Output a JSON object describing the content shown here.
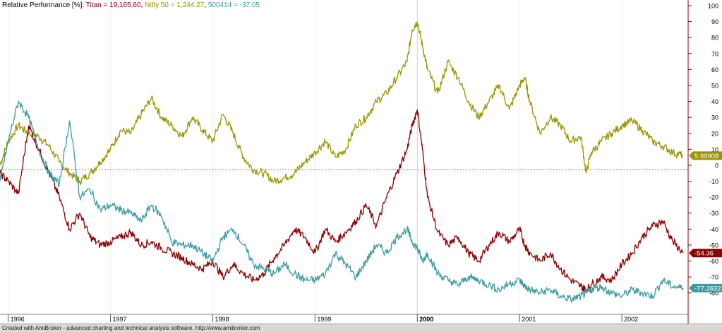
{
  "legend": {
    "prefix": "Relative Performance [%]:",
    "items": [
      {
        "text": "Titan = 19,165.60",
        "color": "#8b0000"
      },
      {
        "text": "Nifty 50 = 1,244.27",
        "color": "#9a9400"
      },
      {
        "text": "500414 = -37.05",
        "color": "#3c9aa0"
      }
    ],
    "separator": ", "
  },
  "footer_text": "Created with AmiBroker - advanced charting and technical analysis software. http://www.amibroker.com",
  "chart_data": {
    "type": "line",
    "title": "Relative Performance [%]",
    "ylim": [
      -85,
      100
    ],
    "xlim": [
      1995.92,
      2002.62
    ],
    "y_ticks": [
      100,
      90,
      80,
      70,
      60,
      50,
      40,
      30,
      20,
      10,
      0,
      -10,
      -20,
      -30,
      -40,
      -50,
      -60,
      -70,
      -80
    ],
    "x_ticks": [
      {
        "label": "1996",
        "x": 1996.0,
        "bold": false
      },
      {
        "label": "1997",
        "x": 1997.0,
        "bold": false
      },
      {
        "label": "1998",
        "x": 1998.0,
        "bold": false
      },
      {
        "label": "1999",
        "x": 1999.0,
        "bold": false
      },
      {
        "label": "2000",
        "x": 2000.0,
        "bold": true
      },
      {
        "label": "2001",
        "x": 2001.0,
        "bold": false
      },
      {
        "label": "2002",
        "x": 2002.0,
        "bold": false
      }
    ],
    "zero_line": true,
    "series": [
      {
        "name": "Nifty 50",
        "color": "#9a9400",
        "last_label": "5.99908",
        "x": [
          1995.92,
          1996.0,
          1996.1,
          1996.2,
          1996.3,
          1996.4,
          1996.5,
          1996.6,
          1996.7,
          1996.8,
          1996.9,
          1997.0,
          1997.1,
          1997.2,
          1997.3,
          1997.4,
          1997.5,
          1997.6,
          1997.7,
          1997.8,
          1997.9,
          1998.0,
          1998.1,
          1998.2,
          1998.3,
          1998.4,
          1998.5,
          1998.6,
          1998.7,
          1998.8,
          1998.9,
          1999.0,
          1999.1,
          1999.2,
          1999.3,
          1999.4,
          1999.5,
          1999.6,
          1999.7,
          1999.8,
          1999.9,
          1999.95,
          2000.0,
          2000.05,
          2000.1,
          2000.2,
          2000.3,
          2000.4,
          2000.5,
          2000.6,
          2000.7,
          2000.8,
          2000.9,
          2001.0,
          2001.05,
          2001.1,
          2001.2,
          2001.3,
          2001.4,
          2001.5,
          2001.6,
          2001.65,
          2001.7,
          2001.8,
          2001.9,
          2002.0,
          2002.1,
          2002.2,
          2002.3,
          2002.4,
          2002.5,
          2002.6
        ],
        "values": [
          0,
          15,
          25,
          20,
          18,
          12,
          2,
          -5,
          -10,
          -5,
          2,
          10,
          22,
          20,
          32,
          42,
          30,
          25,
          18,
          30,
          22,
          15,
          32,
          20,
          5,
          -3,
          -5,
          -10,
          -8,
          -5,
          2,
          8,
          15,
          5,
          10,
          25,
          30,
          40,
          45,
          55,
          65,
          85,
          90,
          75,
          60,
          45,
          65,
          55,
          40,
          30,
          40,
          50,
          35,
          50,
          55,
          40,
          20,
          30,
          25,
          15,
          18,
          -5,
          8,
          15,
          20,
          25,
          28,
          22,
          15,
          12,
          8,
          6
        ]
      },
      {
        "name": "Titan",
        "color": "#8b0000",
        "last_label": "-54.36",
        "x": [
          1995.92,
          1996.0,
          1996.1,
          1996.2,
          1996.3,
          1996.4,
          1996.5,
          1996.6,
          1996.7,
          1996.8,
          1996.9,
          1997.0,
          1997.1,
          1997.2,
          1997.3,
          1997.4,
          1997.5,
          1997.6,
          1997.7,
          1997.8,
          1997.9,
          1998.0,
          1998.1,
          1998.2,
          1998.3,
          1998.4,
          1998.5,
          1998.6,
          1998.7,
          1998.8,
          1998.9,
          1999.0,
          1999.1,
          1999.2,
          1999.3,
          1999.4,
          1999.5,
          1999.6,
          1999.7,
          1999.8,
          1999.9,
          1999.95,
          2000.0,
          2000.05,
          2000.1,
          2000.2,
          2000.3,
          2000.4,
          2000.5,
          2000.6,
          2000.7,
          2000.8,
          2000.9,
          2001.0,
          2001.05,
          2001.1,
          2001.2,
          2001.3,
          2001.4,
          2001.5,
          2001.6,
          2001.65,
          2001.7,
          2001.8,
          2001.9,
          2002.0,
          2002.1,
          2002.2,
          2002.3,
          2002.4,
          2002.5,
          2002.6
        ],
        "values": [
          -5,
          -10,
          -18,
          25,
          10,
          -5,
          -20,
          -40,
          -30,
          -45,
          -50,
          -48,
          -45,
          -42,
          -50,
          -48,
          -52,
          -55,
          -58,
          -62,
          -65,
          -60,
          -70,
          -62,
          -68,
          -72,
          -68,
          -58,
          -50,
          -40,
          -45,
          -55,
          -40,
          -48,
          -42,
          -35,
          -25,
          -38,
          -20,
          -5,
          10,
          25,
          35,
          10,
          -20,
          -42,
          -50,
          -45,
          -55,
          -60,
          -50,
          -42,
          -48,
          -40,
          -50,
          -55,
          -60,
          -55,
          -65,
          -72,
          -76,
          -78,
          -75,
          -70,
          -72,
          -62,
          -55,
          -45,
          -38,
          -35,
          -48,
          -55
        ]
      },
      {
        "name": "500414",
        "color": "#3c9aa0",
        "last_label": "-77.2632",
        "x": [
          1995.92,
          1996.0,
          1996.1,
          1996.2,
          1996.3,
          1996.4,
          1996.5,
          1996.6,
          1996.7,
          1996.8,
          1996.9,
          1997.0,
          1997.1,
          1997.2,
          1997.3,
          1997.4,
          1997.5,
          1997.6,
          1997.7,
          1997.8,
          1997.9,
          1998.0,
          1998.1,
          1998.2,
          1998.3,
          1998.4,
          1998.5,
          1998.6,
          1998.7,
          1998.8,
          1998.9,
          1999.0,
          1999.1,
          1999.2,
          1999.3,
          1999.4,
          1999.5,
          1999.6,
          1999.7,
          1999.8,
          1999.9,
          1999.95,
          2000.0,
          2000.05,
          2000.1,
          2000.2,
          2000.3,
          2000.4,
          2000.5,
          2000.6,
          2000.7,
          2000.8,
          2000.9,
          2001.0,
          2001.05,
          2001.1,
          2001.2,
          2001.3,
          2001.4,
          2001.5,
          2001.6,
          2001.65,
          2001.7,
          2001.8,
          2001.9,
          2002.0,
          2002.1,
          2002.2,
          2002.3,
          2002.4,
          2002.5,
          2002.6
        ],
        "values": [
          -10,
          15,
          40,
          30,
          10,
          -5,
          -12,
          28,
          -20,
          -15,
          -28,
          -25,
          -28,
          -30,
          -35,
          -25,
          -32,
          -48,
          -50,
          -50,
          -55,
          -60,
          -45,
          -40,
          -50,
          -62,
          -65,
          -68,
          -62,
          -68,
          -72,
          -72,
          -68,
          -55,
          -62,
          -70,
          -60,
          -50,
          -55,
          -45,
          -40,
          -48,
          -52,
          -60,
          -55,
          -68,
          -72,
          -75,
          -70,
          -72,
          -75,
          -78,
          -74,
          -72,
          -76,
          -78,
          -80,
          -78,
          -82,
          -84,
          -82,
          -80,
          -78,
          -76,
          -80,
          -82,
          -78,
          -80,
          -82,
          -72,
          -76,
          -77
        ]
      }
    ]
  }
}
